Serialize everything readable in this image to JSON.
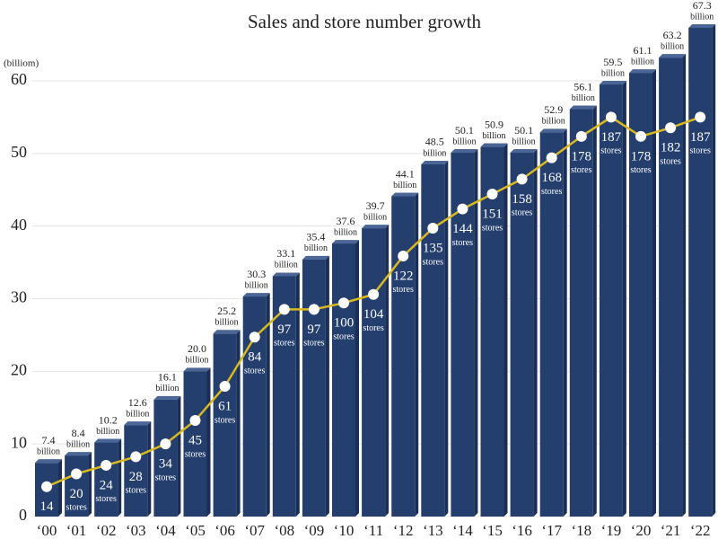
{
  "chart_data": {
    "type": "bar",
    "title": "Sales and store number growth",
    "y_unit_label": "(billiom)",
    "categories": [
      "‘00",
      "‘01",
      "‘02",
      "‘03",
      "‘04",
      "‘05",
      "‘06",
      "‘07",
      "‘08",
      "‘09",
      "‘10",
      "‘11",
      "‘12",
      "‘13",
      "‘14",
      "‘15",
      "‘16",
      "‘17",
      "‘18",
      "‘19",
      "‘20",
      "‘21",
      "‘22"
    ],
    "series": [
      {
        "name": "Sales",
        "color": "#243f6e",
        "unit": "billion",
        "values": [
          7.4,
          8.4,
          10.2,
          12.6,
          16.1,
          20.0,
          25.2,
          30.3,
          33.1,
          35.4,
          37.6,
          39.7,
          44.1,
          48.5,
          50.1,
          50.9,
          50.1,
          52.9,
          56.1,
          59.5,
          61.1,
          63.2,
          67.3
        ],
        "value_labels": [
          "7.4",
          "8.4",
          "10.2",
          "12.6",
          "16.1",
          "20.0",
          "25.2",
          "30.3",
          "33.1",
          "35.4",
          "37.6",
          "39.7",
          "44.1",
          "48.5",
          "50.1",
          "50.9",
          "50.1",
          "52.9",
          "56.1",
          "59.5",
          "61.1",
          "63.2",
          "67.3"
        ]
      },
      {
        "name": "Stores",
        "type": "line",
        "axis": "y2",
        "color": "#d9b820",
        "unit": "stores",
        "values": [
          14,
          20,
          24,
          28,
          34,
          45,
          61,
          84,
          97,
          97,
          100,
          104,
          122,
          135,
          144,
          151,
          158,
          168,
          178,
          187,
          178,
          182,
          187
        ]
      }
    ],
    "ylim": [
      0,
      60
    ],
    "yticks": [
      0,
      10,
      20,
      30,
      40,
      50,
      60
    ],
    "grid": true,
    "y2lim": [
      0,
      204
    ]
  }
}
